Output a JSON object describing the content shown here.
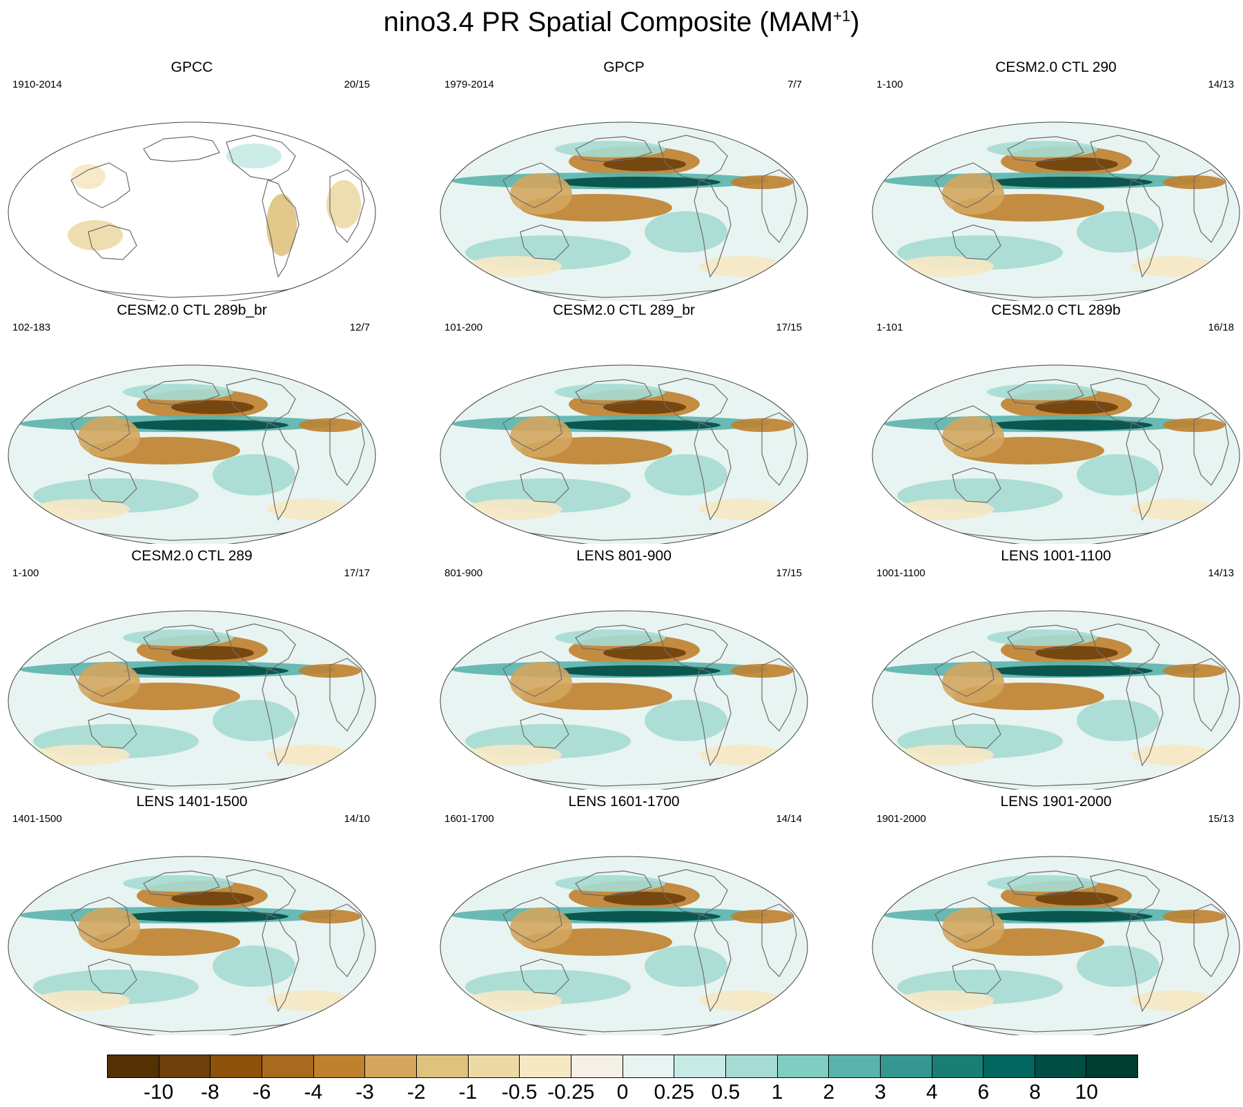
{
  "title": {
    "main": "nino3.4 PR Spatial Composite (MAM",
    "superscript": "+1",
    "close": ")"
  },
  "panels": [
    {
      "name": "GPCC",
      "left": "1910-2014",
      "right": "20/15",
      "variant": "land-only"
    },
    {
      "name": "GPCP",
      "left": "1979-2014",
      "right": "7/7",
      "variant": "obs"
    },
    {
      "name": "CESM2.0 CTL 290",
      "left": "1-100",
      "right": "14/13",
      "variant": "model"
    },
    {
      "name": "CESM2.0 CTL 289b_br",
      "left": "102-183",
      "right": "12/7",
      "variant": "model"
    },
    {
      "name": "CESM2.0 CTL 289_br",
      "left": "101-200",
      "right": "17/15",
      "variant": "model"
    },
    {
      "name": "CESM2.0 CTL 289b",
      "left": "1-101",
      "right": "16/18",
      "variant": "model"
    },
    {
      "name": "CESM2.0 CTL 289",
      "left": "1-100",
      "right": "17/17",
      "variant": "model"
    },
    {
      "name": "LENS 801-900",
      "left": "801-900",
      "right": "17/15",
      "variant": "model"
    },
    {
      "name": "LENS 1001-1100",
      "left": "1001-1100",
      "right": "14/13",
      "variant": "model"
    },
    {
      "name": "LENS 1401-1500",
      "left": "1401-1500",
      "right": "14/10",
      "variant": "model"
    },
    {
      "name": "LENS 1601-1700",
      "left": "1601-1700",
      "right": "14/14",
      "variant": "model"
    },
    {
      "name": "LENS 1901-2000",
      "left": "1901-2000",
      "right": "15/13",
      "variant": "model"
    }
  ],
  "colorbar": {
    "labels": [
      "-10",
      "-8",
      "-6",
      "-4",
      "-3",
      "-2",
      "-1",
      "-0.5",
      "-0.25",
      "0",
      "0.25",
      "0.5",
      "1",
      "2",
      "3",
      "4",
      "6",
      "8",
      "10"
    ],
    "colors": [
      "#543005",
      "#6e3f0a",
      "#8c510a",
      "#a86a1e",
      "#bf812d",
      "#d4a65e",
      "#dfc27d",
      "#ecd9a6",
      "#f6e8c3",
      "#f4f0e6",
      "#e8f4f1",
      "#c7eae5",
      "#a6dcd3",
      "#80cdc1",
      "#5ab4ac",
      "#35978f",
      "#1b7e75",
      "#01665e",
      "#014d44",
      "#003c30"
    ]
  }
}
